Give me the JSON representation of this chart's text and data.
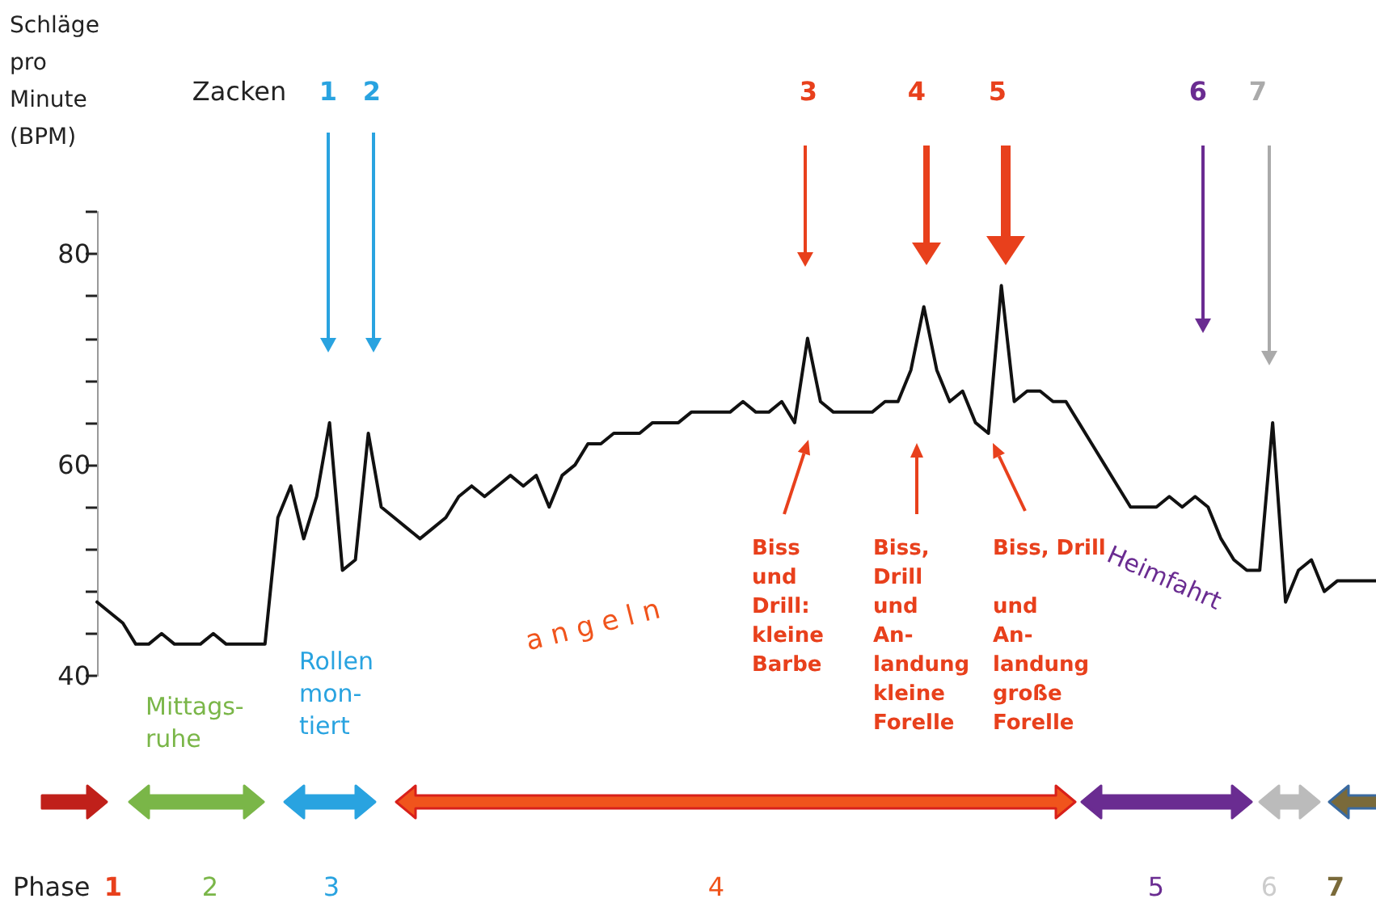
{
  "chart_data": {
    "type": "line",
    "ylabel": "Schläge pro Minute (BPM)",
    "categories": [
      null,
      null,
      null,
      null,
      null,
      null,
      null,
      null,
      null,
      null,
      null,
      null,
      null,
      null,
      null,
      null,
      null,
      null,
      null,
      null,
      null,
      null,
      null,
      null,
      null,
      null,
      null,
      null,
      null,
      null,
      null,
      null,
      null,
      null,
      null,
      null,
      null,
      null,
      null,
      null,
      null,
      null,
      null,
      null,
      null,
      null,
      null,
      null,
      null,
      null,
      null,
      null,
      null,
      null,
      null,
      null,
      null,
      null,
      null,
      null,
      null,
      null,
      null,
      null,
      null,
      null,
      null,
      null,
      null,
      null,
      null,
      null,
      null,
      null,
      null,
      null,
      null,
      null,
      null,
      null,
      null,
      null,
      null,
      null,
      null,
      null,
      null,
      null,
      null,
      null,
      null,
      null,
      null,
      null,
      null,
      null,
      null,
      null,
      null,
      null
    ],
    "series": [
      {
        "color": "#111111",
        "values": [
          47,
          46,
          45,
          43,
          43,
          44,
          43,
          43,
          43,
          44,
          43,
          43,
          43,
          43,
          55,
          58,
          53,
          57,
          64,
          50,
          51,
          63,
          56,
          55,
          54,
          53,
          54,
          55,
          57,
          58,
          57,
          58,
          59,
          58,
          59,
          56,
          59,
          60,
          62,
          62,
          63,
          63,
          63,
          64,
          64,
          64,
          65,
          65,
          65,
          65,
          66,
          65,
          65,
          66,
          64,
          72,
          66,
          65,
          65,
          65,
          65,
          66,
          66,
          69,
          75,
          69,
          66,
          67,
          64,
          63,
          77,
          66,
          67,
          67,
          66,
          66,
          64,
          62,
          60,
          58,
          56,
          56,
          56,
          57,
          56,
          57,
          56,
          53,
          51,
          50,
          50,
          64,
          47,
          50,
          51,
          48,
          49,
          49,
          49,
          49
        ]
      }
    ],
    "ylim": [
      40,
      84
    ],
    "yticks": [
      40,
      {
        "value": 44,
        "label": null
      },
      {
        "value": 48,
        "label": null
      },
      {
        "value": 52,
        "label": null
      },
      {
        "value": 56,
        "label": null
      },
      60,
      {
        "value": 64,
        "label": null
      },
      {
        "value": 68,
        "label": null
      },
      {
        "value": 72,
        "label": null
      },
      {
        "value": 76,
        "label": null
      },
      80,
      {
        "value": 84,
        "label": null
      }
    ],
    "tick_labels": "y",
    "grid": false,
    "line_style": "solid",
    "annotations": [
      "Zacken",
      "1",
      "2",
      "3",
      "4",
      "5",
      "6",
      "7",
      "Biss\nund\nDrill:\nkleine\nBarbe",
      "Biss,\nDrill\nund\nAn-\nlandung\nkleine\nForelle",
      "Biss, Drill\n\nund\nAn-\nlandung\ngroße\nForelle",
      "Mittags-\nruhe",
      "Rollen\nmon-\ntiert",
      "a n g e l n",
      "Heimfahrt",
      "Phase",
      "1",
      "2",
      "3",
      "4",
      "5",
      "6",
      "7"
    ]
  }
}
